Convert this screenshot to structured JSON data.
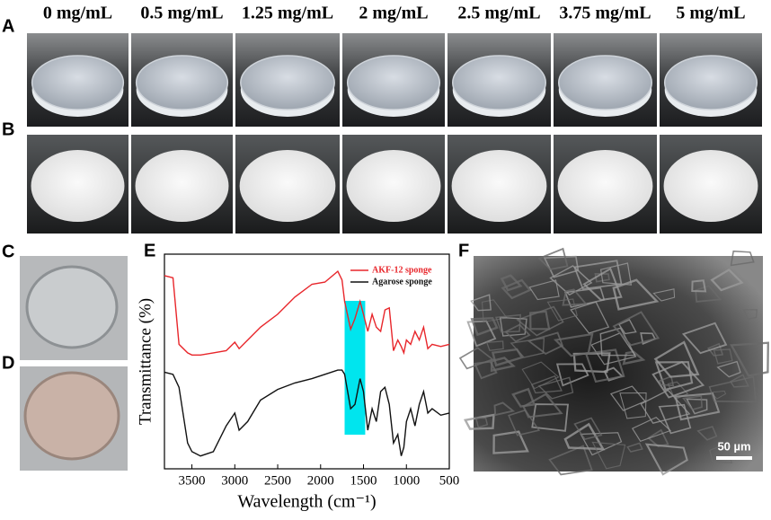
{
  "panel_labels": {
    "a": "A",
    "b": "B",
    "c": "C",
    "d": "D",
    "e": "E",
    "f": "F"
  },
  "concentrations": [
    "0 mg/mL",
    "0.5 mg/mL",
    "1.25 mg/mL",
    "2 mg/mL",
    "2.5 mg/mL",
    "3.75 mg/mL",
    "5 mg/mL"
  ],
  "scale_bar": "50 µm",
  "chart_data": {
    "type": "line",
    "xlabel": "Wavelength (cm⁻¹)",
    "ylabel": "Transmittance (%)",
    "xlim": [
      3820,
      500
    ],
    "ylim": [
      0,
      100
    ],
    "xticks": [
      3500,
      3000,
      2500,
      2000,
      1500,
      1000,
      500
    ],
    "legend": "upper right",
    "highlight": [
      1720,
      1480
    ],
    "highlight_color": "#00e5ee",
    "x": [
      3820,
      3720,
      3650,
      3550,
      3500,
      3400,
      3250,
      3100,
      3000,
      2950,
      2850,
      2700,
      2500,
      2300,
      2100,
      1950,
      1800,
      1750,
      1720,
      1650,
      1600,
      1540,
      1500,
      1450,
      1400,
      1350,
      1300,
      1250,
      1200,
      1150,
      1100,
      1060,
      1030,
      1000,
      950,
      900,
      850,
      800,
      750,
      700,
      600,
      500
    ],
    "series": [
      {
        "name": "AKF-12 sponge",
        "color": "#e8262b",
        "values": [
          90,
          89,
          58,
          54,
          53,
          53,
          54,
          55,
          59,
          56,
          60,
          66,
          72,
          80,
          86,
          87,
          92,
          88,
          78,
          65,
          70,
          78,
          72,
          64,
          72,
          66,
          64,
          74,
          75,
          55,
          60,
          57,
          54,
          60,
          58,
          64,
          60,
          66,
          56,
          58,
          57,
          58
        ]
      },
      {
        "name": "Agarose sponge",
        "color": "#111111",
        "values": [
          45,
          44,
          38,
          12,
          8,
          6,
          8,
          20,
          26,
          18,
          22,
          32,
          37,
          40,
          42,
          44,
          46,
          46,
          44,
          28,
          30,
          42,
          36,
          18,
          28,
          22,
          36,
          38,
          30,
          12,
          16,
          6,
          10,
          22,
          28,
          20,
          30,
          36,
          26,
          28,
          25,
          26
        ]
      }
    ]
  }
}
